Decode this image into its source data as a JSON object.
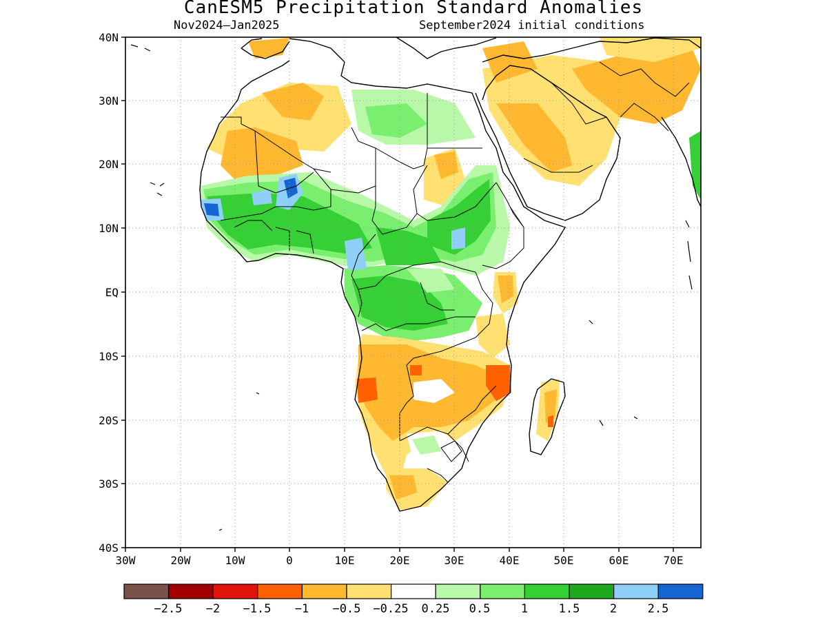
{
  "title": "CanESM5 Precipitation Standard Anomalies",
  "period": "Nov2024–Jan2025",
  "init": "September2024 initial conditions",
  "lat_labels": [
    "40N",
    "30N",
    "20N",
    "10N",
    "EQ",
    "10S",
    "20S",
    "30S",
    "40S"
  ],
  "lon_labels": [
    "30W",
    "20W",
    "10W",
    "0",
    "10E",
    "20E",
    "30E",
    "40E",
    "50E",
    "60E",
    "70E"
  ],
  "map_extent": {
    "lon_min": -30,
    "lon_max": 75,
    "lat_min": -40,
    "lat_max": 40
  },
  "legend": {
    "colors": [
      "#7a5048",
      "#a00000",
      "#e01408",
      "#ff6000",
      "#ffb830",
      "#ffe070",
      "#ffffff",
      "#b8f8a8",
      "#7aee6e",
      "#36d036",
      "#1ea81e",
      "#90d0f8",
      "#1464d2"
    ],
    "labels": [
      "−2.5",
      "−2",
      "−1.5",
      "−1",
      "−0.5",
      "−0.25",
      "0.25",
      "0.5",
      "1",
      "1.5",
      "2",
      "2.5"
    ]
  },
  "palette": {
    "dry_light": "#ffe070",
    "dry": "#ffb830",
    "dry_strong": "#ff6000",
    "dry_vstrong": "#e01408",
    "wet_light": "#b8f8a8",
    "wet": "#7aee6e",
    "wet_mod": "#36d036",
    "wet_strong": "#1ea81e",
    "wet_vstrong": "#90d0f8",
    "wet_ext": "#1464d2"
  }
}
